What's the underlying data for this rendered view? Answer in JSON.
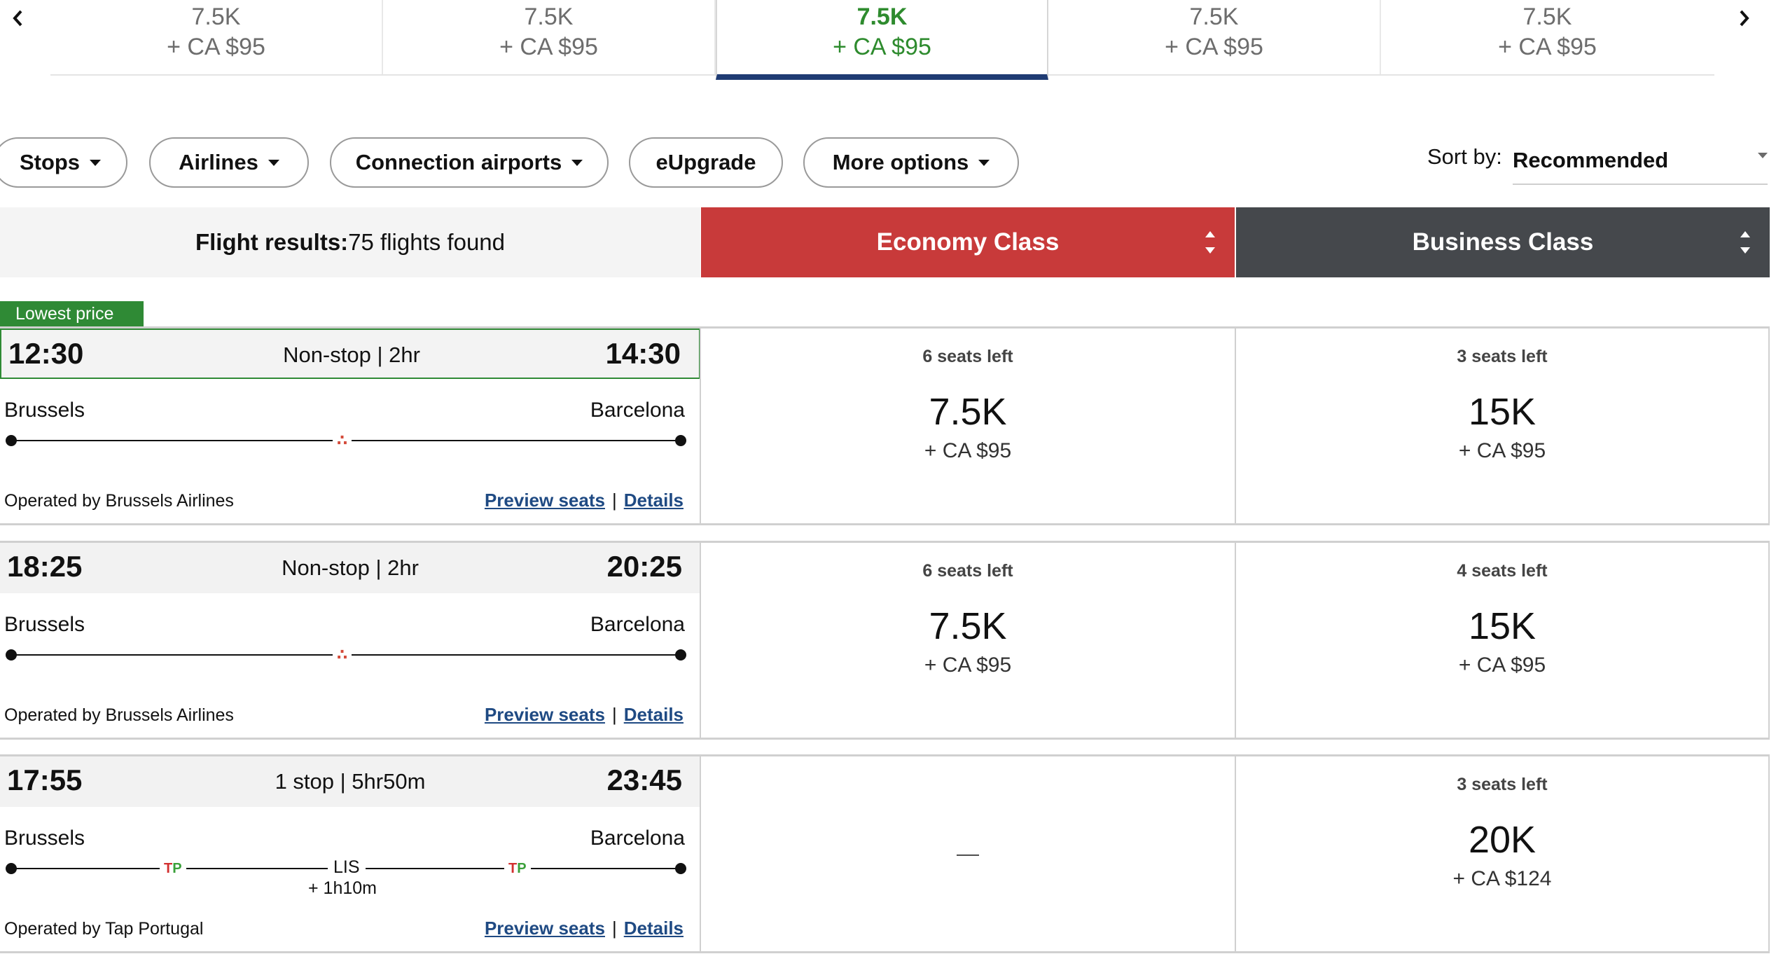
{
  "carousel": {
    "prev_icon": "chevron-left-icon",
    "next_icon": "chevron-right-icon",
    "dates": [
      {
        "points": "7.5K",
        "fee": "+ CA $95",
        "selected": false
      },
      {
        "points": "7.5K",
        "fee": "+ CA $95",
        "selected": false
      },
      {
        "points": "7.5K",
        "fee": "+ CA $95",
        "selected": true
      },
      {
        "points": "7.5K",
        "fee": "+ CA $95",
        "selected": false
      },
      {
        "points": "7.5K",
        "fee": "+ CA $95",
        "selected": false
      }
    ]
  },
  "filters": {
    "stops": "Stops",
    "airlines": "Airlines",
    "connection_airports": "Connection airports",
    "eupgrade": "eUpgrade",
    "more_options": "More options"
  },
  "sort": {
    "label": "Sort by:",
    "value": "Recommended"
  },
  "results": {
    "label": "Flight results:",
    "count": "75 flights found"
  },
  "classes": {
    "economy": "Economy Class",
    "business": "Business Class"
  },
  "lowest_price_tag": "Lowest price",
  "flights": [
    {
      "departure": "12:30",
      "arrival": "14:30",
      "summary": "Non-stop | 2hr",
      "from": "Brussels",
      "to": "Barcelona",
      "airline_logo": "brussels-airlines-logo",
      "operated_by": "Operated by Brussels Airlines",
      "preview_seats": "Preview seats",
      "details": "Details",
      "economy": {
        "seats": "6 seats left",
        "points": "7.5K",
        "fee": "+ CA $95"
      },
      "business": {
        "seats": "3 seats left",
        "points": "15K",
        "fee": "+ CA $95"
      }
    },
    {
      "departure": "18:25",
      "arrival": "20:25",
      "summary": "Non-stop | 2hr",
      "from": "Brussels",
      "to": "Barcelona",
      "airline_logo": "brussels-airlines-logo",
      "operated_by": "Operated by Brussels Airlines",
      "preview_seats": "Preview seats",
      "details": "Details",
      "economy": {
        "seats": "6 seats left",
        "points": "7.5K",
        "fee": "+ CA $95"
      },
      "business": {
        "seats": "4 seats left",
        "points": "15K",
        "fee": "+ CA $95"
      }
    },
    {
      "departure": "17:55",
      "arrival": "23:45",
      "summary": "1 stop | 5hr50m",
      "from": "Brussels",
      "to": "Barcelona",
      "airline_logo": "tap-portugal-logo",
      "stop_code": "LIS",
      "layover": "+ 1h10m",
      "operated_by": "Operated by Tap Portugal",
      "preview_seats": "Preview seats",
      "details": "Details",
      "economy": {
        "unavailable": "—"
      },
      "business": {
        "seats": "3 seats left",
        "points": "20K",
        "fee": "+ CA $124"
      }
    }
  ],
  "colors": {
    "selected_green": "#2e8b2e",
    "economy_red": "#c83a3a",
    "business_dark": "#45484c",
    "link_blue": "#1f4a83",
    "carousel_underline": "#1f3b73"
  }
}
